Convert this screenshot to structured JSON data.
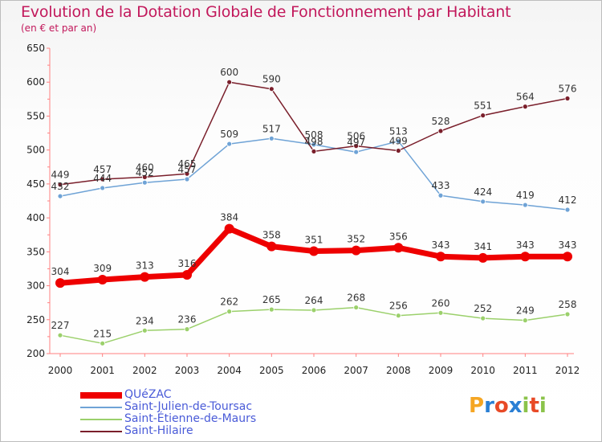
{
  "header": {
    "title": "Evolution de la Dotation Globale de Fonctionnement par Habitant",
    "subtitle": "(en € et par an)"
  },
  "brand": {
    "name": "Proxiti",
    "letters": [
      "P",
      "r",
      "o",
      "x",
      "i",
      "t",
      "i"
    ],
    "colors": [
      "#f5a623",
      "#2a7fd4",
      "#e84a27",
      "#2a7fd4",
      "#8bc34a",
      "#e84a27",
      "#8bc34a"
    ]
  },
  "chart_data": {
    "type": "line",
    "x": [
      "2000",
      "2001",
      "2002",
      "2003",
      "2004",
      "2005",
      "2006",
      "2007",
      "2008",
      "2009",
      "2010",
      "2011",
      "2012"
    ],
    "ylim": [
      200,
      650
    ],
    "yticks": [
      "200",
      "250",
      "300",
      "350",
      "400",
      "450",
      "500",
      "550",
      "600",
      "650"
    ],
    "grid": false,
    "legend": "bottom-left",
    "series": [
      {
        "name": "QUéZAC",
        "color": "#ee0000",
        "values": [
          304,
          309,
          313,
          316,
          384,
          358,
          351,
          352,
          356,
          343,
          341,
          343,
          343
        ],
        "labels": [
          "304",
          "309",
          "313",
          "316",
          "384",
          "358",
          "351",
          "352",
          "356",
          "343",
          "341",
          "343",
          "343"
        ]
      },
      {
        "name": "Saint-Julien-de-Toursac",
        "color": "#6fa3d6",
        "values": [
          432,
          444,
          452,
          457,
          509,
          517,
          508,
          497,
          513,
          433,
          424,
          419,
          412
        ],
        "labels": [
          "432",
          "444",
          "452",
          "457",
          "509",
          "517",
          "508",
          "497",
          "513",
          "433",
          "424",
          "419",
          "412"
        ]
      },
      {
        "name": "Saint-Étienne-de-Maurs",
        "color": "#9bd06b",
        "values": [
          227,
          215,
          234,
          236,
          262,
          265,
          264,
          268,
          256,
          260,
          252,
          249,
          258
        ],
        "labels": [
          "227",
          "215",
          "234",
          "236",
          "262",
          "265",
          "264",
          "268",
          "256",
          "260",
          "252",
          "249",
          "258"
        ]
      },
      {
        "name": "Saint-Hilaire",
        "color": "#7a1f2b",
        "values": [
          449,
          457,
          460,
          465,
          600,
          590,
          498,
          506,
          499,
          528,
          551,
          564,
          576
        ],
        "labels": [
          "449",
          "457",
          "460",
          "465",
          "600",
          "590",
          "498",
          "506",
          "499",
          "528",
          "551",
          "564",
          "576"
        ]
      }
    ]
  }
}
